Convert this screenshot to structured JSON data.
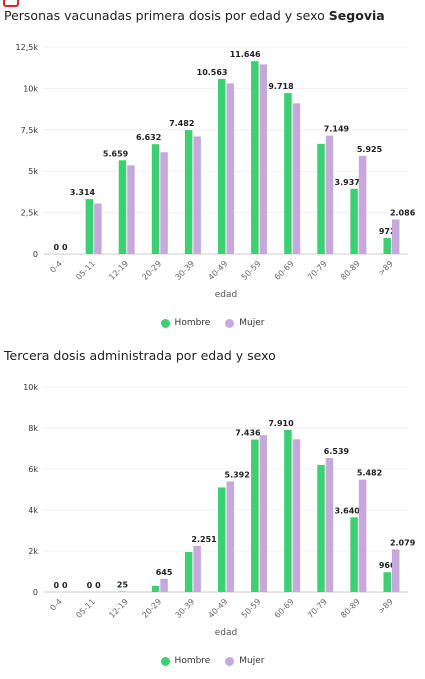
{
  "colors": {
    "hombre": "#3ecf73",
    "mujer": "#c7a8dd"
  },
  "chart1": {
    "title_main": "Personas vacunadas primera dosis por edad y sexo",
    "title_place": "Segovia",
    "xlabel": "edad",
    "legend": [
      {
        "label": "Hombre",
        "color": "#3ecf73"
      },
      {
        "label": "Mujer",
        "color": "#c7a8dd"
      }
    ]
  },
  "chart2": {
    "title_main": "Tercera dosis administrada por edad y sexo",
    "xlabel": "edad",
    "legend": [
      {
        "label": "Hombre",
        "color": "#3ecf73"
      },
      {
        "label": "Mujer",
        "color": "#c7a8dd"
      }
    ]
  },
  "chart_data": [
    {
      "type": "bar",
      "title": "Personas vacunadas primera dosis por edad y sexo Segovia",
      "xlabel": "edad",
      "ylabel": "",
      "categories": [
        "0-4",
        "05-11",
        "12-19",
        "20-29",
        "30-39",
        "40-49",
        "50-59",
        "60-69",
        "70-79",
        "80-89",
        ">89"
      ],
      "ylim": [
        0,
        12500
      ],
      "yticks": [
        0,
        2500,
        5000,
        7500,
        10000,
        12500
      ],
      "ytick_labels": [
        "0",
        "2,5k",
        "5k",
        "7,5k",
        "10k",
        "12,5k"
      ],
      "legend_position": "bottom",
      "series": [
        {
          "name": "Hombre",
          "color": "#3ecf73",
          "values": [
            0,
            3314,
            5659,
            6632,
            7482,
            10563,
            11646,
            9718,
            6650,
            3937,
            972
          ],
          "labels": [
            "0",
            "3.314",
            "5.659",
            "6.632",
            "7.482",
            "10.563",
            "11.646",
            "9.718",
            "",
            "3.937",
            "972"
          ]
        },
        {
          "name": "Mujer",
          "color": "#c7a8dd",
          "values": [
            0,
            3050,
            5350,
            6150,
            7100,
            10300,
            11450,
            9100,
            7149,
            5925,
            2086
          ],
          "labels": [
            "0",
            "",
            "",
            "",
            "",
            "",
            "",
            "",
            "7.149",
            "5.925",
            "2.086"
          ]
        }
      ]
    },
    {
      "type": "bar",
      "title": "Tercera dosis administrada por edad y sexo",
      "xlabel": "edad",
      "ylabel": "",
      "categories": [
        "0-4",
        "05-11",
        "12-19",
        "20-29",
        "30-39",
        "40-49",
        "50-59",
        "60-69",
        "70-79",
        "80-89",
        ">89"
      ],
      "ylim": [
        0,
        10000
      ],
      "yticks": [
        0,
        2000,
        4000,
        6000,
        8000,
        10000
      ],
      "ytick_labels": [
        "0",
        "2k",
        "4k",
        "6k",
        "8k",
        "10k"
      ],
      "legend_position": "bottom",
      "series": [
        {
          "name": "Hombre",
          "color": "#3ecf73",
          "values": [
            0,
            0,
            25,
            300,
            1950,
            5100,
            7436,
            7910,
            6200,
            3640,
            966
          ],
          "labels": [
            "0",
            "0",
            "25",
            "",
            "",
            "",
            "7.436",
            "7.910",
            "",
            "3.640",
            "966"
          ]
        },
        {
          "name": "Mujer",
          "color": "#c7a8dd",
          "values": [
            0,
            0,
            0,
            645,
            2251,
            5392,
            7650,
            7450,
            6539,
            5482,
            2079
          ],
          "labels": [
            "0",
            "0",
            "",
            "645",
            "2.251",
            "5.392",
            "",
            "",
            "6.539",
            "5.482",
            "2.079"
          ]
        }
      ]
    }
  ]
}
